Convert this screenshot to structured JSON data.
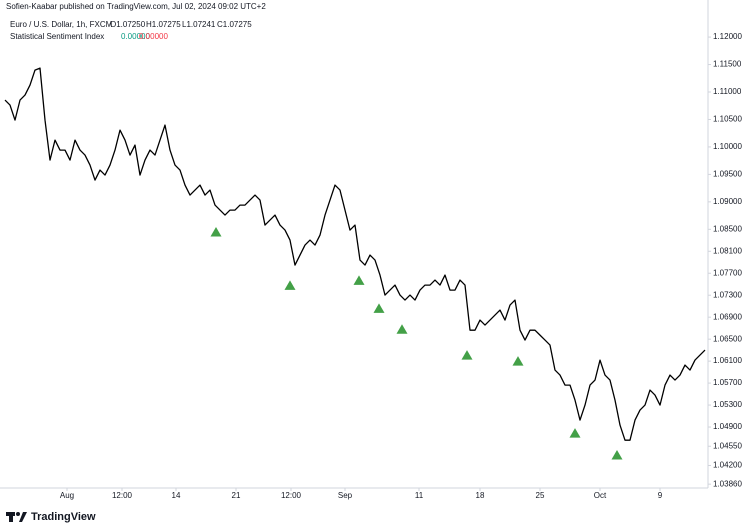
{
  "chart_data": {
    "type": "line",
    "publisher": "Sofien-Kaabar published on TradingView.com, Jul 02, 2024 09:02 UTC+2",
    "title": "Euro / U.S. Dollar, 1h, FXCM",
    "ohlc": [
      "O1.07250",
      "H1.07275",
      "L1.07241",
      "C1.07275"
    ],
    "indicator": {
      "name": "Statistical Sentiment Index",
      "values": [
        "0.00000",
        "0.00000"
      ]
    },
    "brand": "TradingView",
    "color": "#000000",
    "x": [
      0,
      1,
      2,
      3,
      4,
      5,
      6,
      7,
      8,
      9,
      10,
      11,
      12,
      13,
      14,
      15,
      16,
      17,
      18,
      19,
      20,
      21,
      22,
      23,
      24,
      25,
      26,
      27,
      28,
      29,
      30,
      31,
      32,
      33,
      34,
      35,
      36,
      37,
      38,
      39,
      40,
      41,
      42,
      43,
      44,
      45,
      46,
      47,
      48,
      49,
      50,
      51,
      52,
      53,
      54,
      55,
      56,
      57,
      58,
      59,
      60,
      61,
      62,
      63,
      64,
      65,
      66,
      67,
      68,
      69,
      70,
      71,
      72,
      73,
      74,
      75,
      76,
      77,
      78,
      79,
      80,
      81,
      82,
      83,
      84,
      85,
      86,
      87,
      88,
      89,
      90,
      91,
      92,
      93,
      94,
      95,
      96,
      97,
      98,
      99,
      100,
      101,
      102,
      103,
      104,
      105,
      106,
      107,
      108,
      109,
      110,
      111,
      112,
      113,
      114,
      115,
      116,
      117,
      118,
      119,
      120,
      121,
      122,
      123,
      124,
      125,
      126,
      127,
      128,
      129,
      130,
      131,
      132,
      133,
      134,
      135,
      136,
      137,
      138,
      139,
      140
    ],
    "values": [
      1.10853,
      1.10762,
      1.10489,
      1.10853,
      1.10944,
      1.11126,
      1.11399,
      1.11435,
      1.10489,
      1.0976,
      1.10124,
      1.09942,
      1.09942,
      1.0976,
      1.10124,
      1.09942,
      1.09851,
      1.09669,
      1.09396,
      1.09578,
      1.09487,
      1.09669,
      1.09942,
      1.10306,
      1.10124,
      1.09851,
      1.10033,
      1.09487,
      1.0976,
      1.09942,
      1.09851,
      1.10124,
      1.10398,
      1.09942,
      1.09669,
      1.09578,
      1.09305,
      1.09123,
      1.09214,
      1.09305,
      1.09123,
      1.09214,
      1.08941,
      1.0885,
      1.08759,
      1.0885,
      1.0885,
      1.08941,
      1.08941,
      1.09032,
      1.09123,
      1.09032,
      1.08577,
      1.08668,
      1.08759,
      1.08577,
      1.08485,
      1.08303,
      1.07848,
      1.0803,
      1.08212,
      1.08303,
      1.08212,
      1.08394,
      1.08759,
      1.09032,
      1.09305,
      1.09214,
      1.0885,
      1.08485,
      1.08577,
      1.07939,
      1.07848,
      1.0803,
      1.07939,
      1.07666,
      1.07302,
      1.07393,
      1.07484,
      1.07302,
      1.07211,
      1.07302,
      1.07211,
      1.07393,
      1.07484,
      1.07484,
      1.07575,
      1.07484,
      1.07666,
      1.07393,
      1.07393,
      1.07575,
      1.07484,
      1.06664,
      1.06664,
      1.06847,
      1.06756,
      1.06847,
      1.06938,
      1.07029,
      1.06847,
      1.0712,
      1.07211,
      1.06664,
      1.06482,
      1.06664,
      1.06664,
      1.06573,
      1.06482,
      1.06391,
      1.05936,
      1.05845,
      1.05663,
      1.05663,
      1.0539,
      1.05026,
      1.05299,
      1.05663,
      1.05754,
      1.06118,
      1.05845,
      1.05754,
      1.0539,
      1.04935,
      1.04661,
      1.04661,
      1.05026,
      1.05208,
      1.05299,
      1.05572,
      1.05481,
      1.05299,
      1.05663,
      1.05845,
      1.05754,
      1.05845,
      1.06027,
      1.05936,
      1.06118,
      1.06209,
      1.063
    ],
    "signals": {
      "color": "#43a047",
      "x": [
        42.2,
        57,
        70.8,
        74.8,
        79.4,
        92.4,
        102.6,
        114,
        122.4
      ],
      "values": [
        1.0845,
        1.0748,
        1.0757,
        1.0706,
        1.0668,
        1.0621,
        1.061,
        1.0479,
        1.0439
      ]
    },
    "xlim": [
      0,
      140
    ],
    "xticks": [
      {
        "value": 12.4,
        "label": "Aug"
      },
      {
        "value": 23.4,
        "label": "12:00"
      },
      {
        "value": 34.2,
        "label": "14"
      },
      {
        "value": 46.2,
        "label": "21"
      },
      {
        "value": 57.2,
        "label": "12:00"
      },
      {
        "value": 68,
        "label": "Sep"
      },
      {
        "value": 82.8,
        "label": "11"
      },
      {
        "value": 95,
        "label": "18"
      },
      {
        "value": 107,
        "label": "25"
      },
      {
        "value": 119,
        "label": "Oct"
      },
      {
        "value": 131,
        "label": "9"
      }
    ],
    "ylim": [
      1.0379,
      1.1222
    ],
    "yticks": [
      {
        "value": 1.12,
        "label": "1.12000"
      },
      {
        "value": 1.115,
        "label": "1.11500"
      },
      {
        "value": 1.11,
        "label": "1.11000"
      },
      {
        "value": 1.105,
        "label": "1.10500"
      },
      {
        "value": 1.1,
        "label": "1.10000"
      },
      {
        "value": 1.095,
        "label": "1.09500"
      },
      {
        "value": 1.09,
        "label": "1.09000"
      },
      {
        "value": 1.085,
        "label": "1.08500"
      },
      {
        "value": 1.081,
        "label": "1.08100"
      },
      {
        "value": 1.077,
        "label": "1.07700"
      },
      {
        "value": 1.073,
        "label": "1.07300"
      },
      {
        "value": 1.069,
        "label": "1.06900"
      },
      {
        "value": 1.065,
        "label": "1.06500"
      },
      {
        "value": 1.061,
        "label": "1.06100"
      },
      {
        "value": 1.057,
        "label": "1.05700"
      },
      {
        "value": 1.053,
        "label": "1.05300"
      },
      {
        "value": 1.049,
        "label": "1.04900"
      },
      {
        "value": 1.0455,
        "label": "1.04550"
      },
      {
        "value": 1.042,
        "label": "1.04200"
      },
      {
        "value": 1.0386,
        "label": "1.03860"
      }
    ]
  }
}
